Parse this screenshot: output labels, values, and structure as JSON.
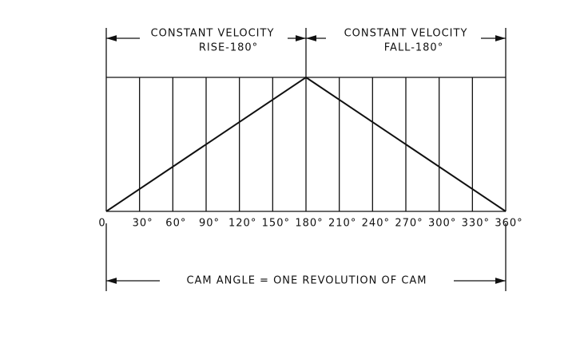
{
  "top_labels": [
    {
      "line1": "CONSTANT VELOCITY",
      "line2": "RISE-180°"
    },
    {
      "line1": "CONSTANT VELOCITY",
      "line2": "FALL-180°"
    }
  ],
  "angle_labels": [
    "0",
    "30°",
    "60°",
    "90°",
    "120°",
    "150°",
    "180°",
    "210°",
    "240°",
    "270°",
    "300°",
    "330°",
    "360°"
  ],
  "bottom_label": "CAM ANGLE = ONE REVOLUTION OF CAM"
}
